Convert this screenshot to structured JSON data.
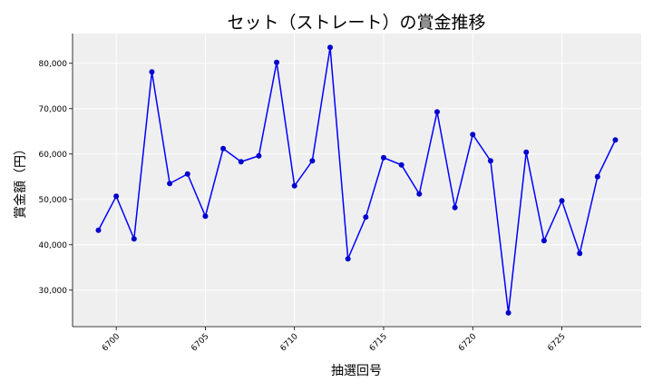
{
  "chart_data": {
    "type": "line",
    "title": "セット（ストレート）の賞金推移",
    "xlabel": "抽選回号",
    "ylabel": "賞金額（円）",
    "x": [
      6699,
      6700,
      6701,
      6702,
      6703,
      6704,
      6705,
      6706,
      6707,
      6708,
      6709,
      6710,
      6711,
      6712,
      6713,
      6714,
      6715,
      6716,
      6717,
      6718,
      6719,
      6720,
      6721,
      6722,
      6723,
      6724,
      6725,
      6726,
      6727,
      6728
    ],
    "series": [
      {
        "values": [
          43200,
          50700,
          41300,
          78100,
          53500,
          55600,
          46300,
          61200,
          58300,
          59600,
          80200,
          53000,
          58500,
          83500,
          36900,
          46100,
          59200,
          57600,
          51200,
          69300,
          48200,
          64300,
          58500,
          25000,
          60400,
          40900,
          49700,
          38100,
          55000,
          63100
        ]
      }
    ],
    "xticks": [
      "6700",
      "6705",
      "6710",
      "6715",
      "6720",
      "6725"
    ],
    "yticks": [
      "30,000",
      "40,000",
      "50,000",
      "60,000",
      "70,000",
      "80,000"
    ],
    "xlim": [
      6697.55,
      6729.45
    ],
    "ylim": [
      21950,
      86550
    ],
    "grid": true,
    "colors": {
      "line": "#0000ff",
      "marker": "#0000cc",
      "plot_background": "#efefef",
      "grid": "#ffffff"
    }
  }
}
